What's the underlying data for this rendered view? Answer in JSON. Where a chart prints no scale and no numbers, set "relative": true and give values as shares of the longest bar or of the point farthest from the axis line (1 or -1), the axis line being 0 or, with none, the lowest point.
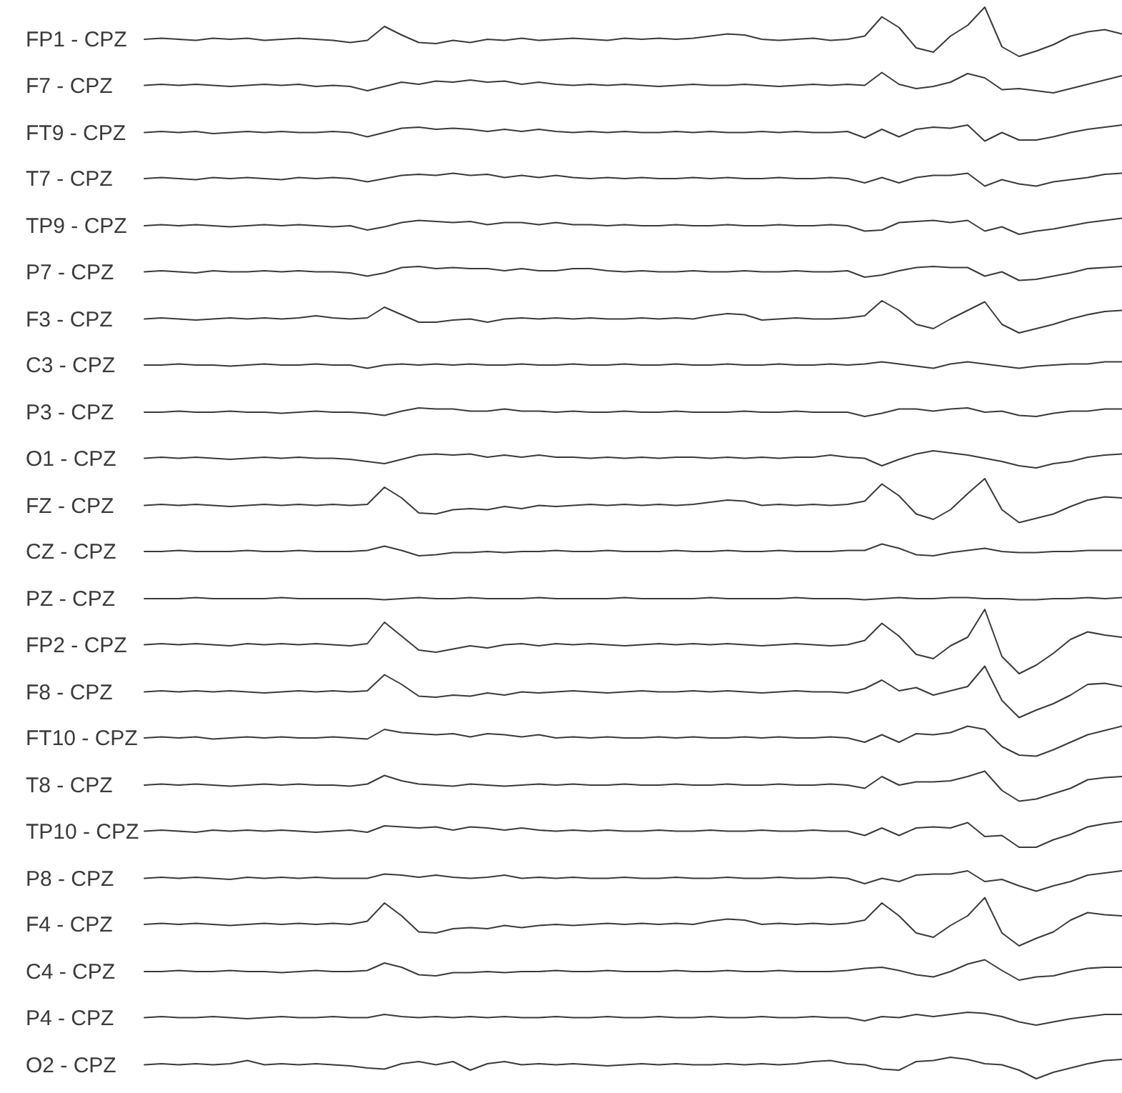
{
  "chart_data": {
    "type": "line",
    "relative": true,
    "tick_labels": false,
    "categories": [
      null,
      null,
      null,
      null,
      null,
      null,
      null,
      null,
      null,
      null,
      null,
      null,
      null,
      null,
      null,
      null,
      null,
      null,
      null,
      null,
      null,
      null,
      null,
      null,
      null,
      null,
      null,
      null,
      null,
      null,
      null,
      null,
      null,
      null,
      null,
      null,
      null,
      null,
      null,
      null,
      null,
      null,
      null,
      null,
      null,
      null,
      null,
      null,
      null,
      null,
      null,
      null,
      null,
      null,
      null,
      null,
      null,
      null
    ],
    "series": [
      {
        "name": "FP1 - CPZ",
        "color": "#3a3a3a",
        "values": [
          0.97,
          0.971,
          0.97,
          0.969,
          0.971,
          0.97,
          0.971,
          0.969,
          0.97,
          0.971,
          0.97,
          0.969,
          0.967,
          0.969,
          0.982,
          0.974,
          0.967,
          0.966,
          0.969,
          0.967,
          0.97,
          0.969,
          0.971,
          0.969,
          0.97,
          0.971,
          0.97,
          0.969,
          0.971,
          0.97,
          0.971,
          0.97,
          0.971,
          0.973,
          0.975,
          0.974,
          0.97,
          0.969,
          0.97,
          0.971,
          0.969,
          0.97,
          0.973,
          0.991,
          0.981,
          0.962,
          0.958,
          0.973,
          0.983,
          1.0,
          0.963,
          0.954,
          0.959,
          0.965,
          0.973,
          0.977,
          0.979,
          0.975
        ]
      },
      {
        "name": "F7 - CPZ",
        "color": "#3a3a3a",
        "values": [
          0.927,
          0.928,
          0.927,
          0.928,
          0.927,
          0.926,
          0.927,
          0.928,
          0.927,
          0.928,
          0.926,
          0.927,
          0.926,
          0.922,
          0.926,
          0.93,
          0.928,
          0.931,
          0.93,
          0.932,
          0.93,
          0.931,
          0.928,
          0.93,
          0.928,
          0.927,
          0.928,
          0.927,
          0.928,
          0.927,
          0.926,
          0.927,
          0.928,
          0.927,
          0.927,
          0.928,
          0.927,
          0.926,
          0.927,
          0.928,
          0.927,
          0.928,
          0.927,
          0.939,
          0.928,
          0.924,
          0.926,
          0.93,
          0.938,
          0.934,
          0.923,
          0.924,
          0.922,
          0.92,
          0.924,
          0.928,
          0.932,
          0.936
        ]
      },
      {
        "name": "FT9 - CPZ",
        "color": "#3a3a3a",
        "values": [
          0.883,
          0.884,
          0.883,
          0.884,
          0.882,
          0.883,
          0.884,
          0.883,
          0.884,
          0.883,
          0.883,
          0.884,
          0.883,
          0.879,
          0.883,
          0.887,
          0.888,
          0.886,
          0.887,
          0.886,
          0.884,
          0.886,
          0.884,
          0.886,
          0.884,
          0.883,
          0.884,
          0.883,
          0.884,
          0.883,
          0.883,
          0.884,
          0.883,
          0.884,
          0.883,
          0.883,
          0.884,
          0.883,
          0.884,
          0.883,
          0.883,
          0.884,
          0.878,
          0.886,
          0.879,
          0.886,
          0.888,
          0.887,
          0.89,
          0.875,
          0.883,
          0.876,
          0.876,
          0.879,
          0.883,
          0.886,
          0.888,
          0.89
        ]
      },
      {
        "name": "T7 - CPZ",
        "color": "#3a3a3a",
        "values": [
          0.84,
          0.841,
          0.84,
          0.839,
          0.841,
          0.84,
          0.841,
          0.84,
          0.839,
          0.841,
          0.84,
          0.841,
          0.84,
          0.837,
          0.84,
          0.843,
          0.844,
          0.843,
          0.845,
          0.843,
          0.844,
          0.841,
          0.843,
          0.841,
          0.843,
          0.841,
          0.84,
          0.841,
          0.84,
          0.841,
          0.84,
          0.84,
          0.841,
          0.84,
          0.841,
          0.84,
          0.84,
          0.841,
          0.84,
          0.84,
          0.841,
          0.84,
          0.836,
          0.841,
          0.836,
          0.841,
          0.843,
          0.843,
          0.845,
          0.833,
          0.839,
          0.835,
          0.833,
          0.837,
          0.839,
          0.841,
          0.844,
          0.845
        ]
      },
      {
        "name": "TP9 - CPZ",
        "color": "#3a3a3a",
        "values": [
          0.796,
          0.797,
          0.796,
          0.797,
          0.796,
          0.795,
          0.796,
          0.797,
          0.796,
          0.797,
          0.796,
          0.795,
          0.796,
          0.792,
          0.795,
          0.799,
          0.801,
          0.8,
          0.799,
          0.8,
          0.797,
          0.799,
          0.799,
          0.797,
          0.799,
          0.797,
          0.797,
          0.796,
          0.797,
          0.796,
          0.796,
          0.797,
          0.796,
          0.796,
          0.797,
          0.796,
          0.796,
          0.797,
          0.796,
          0.796,
          0.797,
          0.796,
          0.791,
          0.792,
          0.799,
          0.8,
          0.801,
          0.799,
          0.801,
          0.791,
          0.795,
          0.788,
          0.791,
          0.793,
          0.796,
          0.799,
          0.801,
          0.803
        ]
      },
      {
        "name": "P7 - CPZ",
        "color": "#3a3a3a",
        "values": [
          0.753,
          0.754,
          0.753,
          0.752,
          0.754,
          0.753,
          0.753,
          0.754,
          0.753,
          0.754,
          0.753,
          0.753,
          0.752,
          0.749,
          0.752,
          0.757,
          0.758,
          0.756,
          0.757,
          0.756,
          0.756,
          0.754,
          0.756,
          0.754,
          0.754,
          0.756,
          0.756,
          0.754,
          0.753,
          0.754,
          0.753,
          0.753,
          0.754,
          0.753,
          0.753,
          0.754,
          0.753,
          0.753,
          0.754,
          0.753,
          0.753,
          0.754,
          0.748,
          0.75,
          0.754,
          0.757,
          0.758,
          0.757,
          0.757,
          0.749,
          0.753,
          0.745,
          0.746,
          0.749,
          0.752,
          0.756,
          0.757,
          0.758
        ]
      },
      {
        "name": "F3 - CPZ",
        "color": "#3a3a3a",
        "values": [
          0.709,
          0.71,
          0.709,
          0.708,
          0.709,
          0.71,
          0.709,
          0.71,
          0.709,
          0.71,
          0.712,
          0.71,
          0.709,
          0.71,
          0.72,
          0.713,
          0.706,
          0.706,
          0.708,
          0.709,
          0.706,
          0.709,
          0.71,
          0.709,
          0.71,
          0.709,
          0.71,
          0.709,
          0.709,
          0.71,
          0.709,
          0.71,
          0.709,
          0.712,
          0.714,
          0.713,
          0.708,
          0.709,
          0.71,
          0.709,
          0.709,
          0.71,
          0.712,
          0.726,
          0.717,
          0.704,
          0.7,
          0.709,
          0.717,
          0.725,
          0.704,
          0.696,
          0.7,
          0.704,
          0.709,
          0.713,
          0.716,
          0.717
        ]
      },
      {
        "name": "C3 - CPZ",
        "color": "#3a3a3a",
        "values": [
          0.666,
          0.666,
          0.667,
          0.666,
          0.666,
          0.665,
          0.666,
          0.667,
          0.666,
          0.666,
          0.667,
          0.666,
          0.666,
          0.663,
          0.666,
          0.667,
          0.666,
          0.667,
          0.666,
          0.667,
          0.666,
          0.666,
          0.667,
          0.666,
          0.666,
          0.667,
          0.666,
          0.666,
          0.667,
          0.666,
          0.666,
          0.667,
          0.666,
          0.666,
          0.667,
          0.666,
          0.666,
          0.667,
          0.666,
          0.666,
          0.667,
          0.666,
          0.667,
          0.669,
          0.667,
          0.665,
          0.663,
          0.667,
          0.669,
          0.667,
          0.665,
          0.663,
          0.665,
          0.666,
          0.667,
          0.667,
          0.669,
          0.669
        ]
      },
      {
        "name": "P3 - CPZ",
        "color": "#3a3a3a",
        "values": [
          0.622,
          0.622,
          0.623,
          0.622,
          0.622,
          0.623,
          0.622,
          0.622,
          0.621,
          0.622,
          0.623,
          0.622,
          0.622,
          0.621,
          0.619,
          0.623,
          0.626,
          0.625,
          0.625,
          0.623,
          0.623,
          0.625,
          0.623,
          0.623,
          0.622,
          0.623,
          0.622,
          0.622,
          0.623,
          0.622,
          0.622,
          0.623,
          0.622,
          0.622,
          0.622,
          0.623,
          0.622,
          0.622,
          0.623,
          0.622,
          0.622,
          0.622,
          0.618,
          0.621,
          0.625,
          0.625,
          0.623,
          0.625,
          0.626,
          0.622,
          0.623,
          0.619,
          0.618,
          0.621,
          0.623,
          0.623,
          0.625,
          0.625
        ]
      },
      {
        "name": "O1 - CPZ",
        "color": "#3a3a3a",
        "values": [
          0.579,
          0.58,
          0.579,
          0.58,
          0.579,
          0.578,
          0.579,
          0.58,
          0.579,
          0.58,
          0.579,
          0.579,
          0.578,
          0.576,
          0.574,
          0.578,
          0.582,
          0.583,
          0.582,
          0.583,
          0.58,
          0.582,
          0.58,
          0.582,
          0.58,
          0.58,
          0.579,
          0.58,
          0.579,
          0.58,
          0.579,
          0.58,
          0.58,
          0.579,
          0.58,
          0.579,
          0.58,
          0.579,
          0.58,
          0.58,
          0.582,
          0.58,
          0.579,
          0.572,
          0.578,
          0.583,
          0.586,
          0.584,
          0.582,
          0.579,
          0.576,
          0.572,
          0.57,
          0.574,
          0.576,
          0.58,
          0.582,
          0.583
        ]
      },
      {
        "name": "FZ - CPZ",
        "color": "#3a3a3a",
        "values": [
          0.535,
          0.536,
          0.535,
          0.536,
          0.535,
          0.534,
          0.535,
          0.536,
          0.535,
          0.536,
          0.535,
          0.536,
          0.535,
          0.536,
          0.552,
          0.542,
          0.528,
          0.527,
          0.531,
          0.532,
          0.531,
          0.534,
          0.532,
          0.535,
          0.534,
          0.535,
          0.536,
          0.535,
          0.536,
          0.535,
          0.536,
          0.535,
          0.536,
          0.538,
          0.54,
          0.539,
          0.535,
          0.536,
          0.535,
          0.536,
          0.535,
          0.536,
          0.539,
          0.555,
          0.544,
          0.527,
          0.522,
          0.531,
          0.546,
          0.56,
          0.531,
          0.519,
          0.523,
          0.527,
          0.534,
          0.54,
          0.543,
          0.542
        ]
      },
      {
        "name": "CZ - CPZ",
        "color": "#3a3a3a",
        "values": [
          0.492,
          0.492,
          0.493,
          0.492,
          0.492,
          0.492,
          0.493,
          0.492,
          0.492,
          0.493,
          0.492,
          0.492,
          0.492,
          0.493,
          0.497,
          0.493,
          0.488,
          0.489,
          0.491,
          0.491,
          0.492,
          0.491,
          0.492,
          0.492,
          0.493,
          0.492,
          0.492,
          0.493,
          0.492,
          0.492,
          0.492,
          0.493,
          0.492,
          0.492,
          0.493,
          0.492,
          0.492,
          0.493,
          0.492,
          0.492,
          0.492,
          0.493,
          0.493,
          0.499,
          0.495,
          0.489,
          0.488,
          0.491,
          0.493,
          0.495,
          0.492,
          0.491,
          0.491,
          0.492,
          0.492,
          0.493,
          0.493,
          0.493
        ]
      },
      {
        "name": "PZ - CPZ",
        "color": "#3a3a3a",
        "values": [
          0.448,
          0.448,
          0.448,
          0.449,
          0.448,
          0.448,
          0.448,
          0.448,
          0.449,
          0.448,
          0.448,
          0.448,
          0.448,
          0.448,
          0.447,
          0.448,
          0.449,
          0.448,
          0.448,
          0.449,
          0.448,
          0.448,
          0.448,
          0.449,
          0.448,
          0.448,
          0.448,
          0.448,
          0.449,
          0.448,
          0.448,
          0.448,
          0.448,
          0.449,
          0.448,
          0.448,
          0.448,
          0.448,
          0.449,
          0.448,
          0.448,
          0.448,
          0.447,
          0.448,
          0.449,
          0.448,
          0.448,
          0.449,
          0.449,
          0.448,
          0.448,
          0.447,
          0.447,
          0.448,
          0.448,
          0.449,
          0.448,
          0.449
        ]
      },
      {
        "name": "FP2 - CPZ",
        "color": "#3a3a3a",
        "values": [
          0.405,
          0.406,
          0.405,
          0.406,
          0.405,
          0.404,
          0.406,
          0.405,
          0.406,
          0.405,
          0.406,
          0.405,
          0.404,
          0.406,
          0.426,
          0.413,
          0.4,
          0.398,
          0.401,
          0.404,
          0.402,
          0.405,
          0.406,
          0.404,
          0.406,
          0.405,
          0.406,
          0.405,
          0.404,
          0.405,
          0.406,
          0.405,
          0.406,
          0.405,
          0.406,
          0.405,
          0.404,
          0.405,
          0.406,
          0.405,
          0.404,
          0.405,
          0.409,
          0.425,
          0.413,
          0.396,
          0.392,
          0.404,
          0.412,
          0.438,
          0.394,
          0.378,
          0.386,
          0.397,
          0.41,
          0.417,
          0.414,
          0.412
        ]
      },
      {
        "name": "F8 - CPZ",
        "color": "#3a3a3a",
        "values": [
          0.361,
          0.362,
          0.361,
          0.362,
          0.361,
          0.362,
          0.361,
          0.36,
          0.361,
          0.362,
          0.361,
          0.362,
          0.361,
          0.362,
          0.377,
          0.368,
          0.357,
          0.356,
          0.358,
          0.357,
          0.36,
          0.358,
          0.361,
          0.36,
          0.361,
          0.362,
          0.361,
          0.36,
          0.361,
          0.362,
          0.361,
          0.361,
          0.362,
          0.361,
          0.362,
          0.361,
          0.36,
          0.361,
          0.362,
          0.361,
          0.361,
          0.36,
          0.364,
          0.372,
          0.362,
          0.365,
          0.358,
          0.362,
          0.366,
          0.385,
          0.353,
          0.337,
          0.344,
          0.35,
          0.358,
          0.368,
          0.369,
          0.366
        ]
      },
      {
        "name": "FT10 - CPZ",
        "color": "#3a3a3a",
        "values": [
          0.318,
          0.319,
          0.318,
          0.319,
          0.317,
          0.318,
          0.319,
          0.318,
          0.319,
          0.318,
          0.318,
          0.319,
          0.318,
          0.317,
          0.326,
          0.323,
          0.322,
          0.321,
          0.322,
          0.319,
          0.322,
          0.321,
          0.319,
          0.321,
          0.318,
          0.319,
          0.318,
          0.319,
          0.318,
          0.318,
          0.319,
          0.318,
          0.319,
          0.318,
          0.318,
          0.319,
          0.318,
          0.319,
          0.318,
          0.318,
          0.319,
          0.318,
          0.314,
          0.321,
          0.314,
          0.322,
          0.321,
          0.323,
          0.329,
          0.326,
          0.31,
          0.302,
          0.301,
          0.307,
          0.314,
          0.321,
          0.325,
          0.329
        ]
      },
      {
        "name": "T8 - CPZ",
        "color": "#3a3a3a",
        "values": [
          0.274,
          0.275,
          0.274,
          0.275,
          0.274,
          0.273,
          0.274,
          0.275,
          0.274,
          0.275,
          0.274,
          0.274,
          0.273,
          0.275,
          0.283,
          0.278,
          0.275,
          0.274,
          0.273,
          0.275,
          0.274,
          0.273,
          0.274,
          0.275,
          0.274,
          0.275,
          0.274,
          0.274,
          0.275,
          0.274,
          0.274,
          0.275,
          0.274,
          0.274,
          0.275,
          0.274,
          0.274,
          0.275,
          0.274,
          0.274,
          0.275,
          0.274,
          0.271,
          0.282,
          0.274,
          0.277,
          0.277,
          0.278,
          0.282,
          0.287,
          0.269,
          0.259,
          0.261,
          0.266,
          0.271,
          0.279,
          0.281,
          0.282
        ]
      },
      {
        "name": "TP10 - CPZ",
        "color": "#3a3a3a",
        "values": [
          0.231,
          0.232,
          0.231,
          0.23,
          0.232,
          0.231,
          0.232,
          0.231,
          0.232,
          0.231,
          0.23,
          0.231,
          0.232,
          0.23,
          0.236,
          0.235,
          0.234,
          0.235,
          0.232,
          0.235,
          0.234,
          0.232,
          0.234,
          0.232,
          0.231,
          0.232,
          0.231,
          0.232,
          0.231,
          0.231,
          0.232,
          0.231,
          0.231,
          0.232,
          0.231,
          0.231,
          0.232,
          0.231,
          0.231,
          0.232,
          0.231,
          0.231,
          0.227,
          0.234,
          0.227,
          0.234,
          0.235,
          0.234,
          0.239,
          0.226,
          0.227,
          0.216,
          0.216,
          0.223,
          0.228,
          0.235,
          0.238,
          0.24
        ]
      },
      {
        "name": "P8 - CPZ",
        "color": "#3a3a3a",
        "values": [
          0.187,
          0.188,
          0.187,
          0.188,
          0.187,
          0.186,
          0.188,
          0.187,
          0.188,
          0.187,
          0.188,
          0.187,
          0.187,
          0.187,
          0.191,
          0.19,
          0.188,
          0.19,
          0.188,
          0.187,
          0.188,
          0.19,
          0.187,
          0.188,
          0.187,
          0.188,
          0.187,
          0.187,
          0.188,
          0.187,
          0.187,
          0.188,
          0.187,
          0.187,
          0.188,
          0.187,
          0.187,
          0.188,
          0.187,
          0.187,
          0.188,
          0.187,
          0.182,
          0.187,
          0.184,
          0.19,
          0.191,
          0.191,
          0.194,
          0.184,
          0.186,
          0.18,
          0.175,
          0.18,
          0.184,
          0.19,
          0.192,
          0.194
        ]
      },
      {
        "name": "F4 - CPZ",
        "color": "#3a3a3a",
        "values": [
          0.144,
          0.145,
          0.144,
          0.145,
          0.144,
          0.143,
          0.144,
          0.145,
          0.144,
          0.145,
          0.144,
          0.145,
          0.144,
          0.147,
          0.164,
          0.152,
          0.137,
          0.136,
          0.14,
          0.141,
          0.14,
          0.143,
          0.141,
          0.143,
          0.144,
          0.143,
          0.144,
          0.145,
          0.144,
          0.145,
          0.144,
          0.145,
          0.144,
          0.147,
          0.149,
          0.148,
          0.144,
          0.145,
          0.144,
          0.145,
          0.144,
          0.145,
          0.148,
          0.164,
          0.152,
          0.136,
          0.132,
          0.143,
          0.152,
          0.169,
          0.136,
          0.124,
          0.131,
          0.137,
          0.148,
          0.155,
          0.153,
          0.152
        ]
      },
      {
        "name": "C4 - CPZ",
        "color": "#3a3a3a",
        "values": [
          0.1,
          0.1,
          0.101,
          0.1,
          0.1,
          0.101,
          0.1,
          0.1,
          0.099,
          0.1,
          0.101,
          0.1,
          0.1,
          0.101,
          0.108,
          0.104,
          0.097,
          0.096,
          0.099,
          0.099,
          0.1,
          0.099,
          0.1,
          0.1,
          0.101,
          0.1,
          0.1,
          0.101,
          0.1,
          0.1,
          0.1,
          0.101,
          0.1,
          0.1,
          0.101,
          0.1,
          0.1,
          0.101,
          0.1,
          0.1,
          0.1,
          0.101,
          0.103,
          0.104,
          0.101,
          0.097,
          0.095,
          0.1,
          0.107,
          0.111,
          0.101,
          0.092,
          0.095,
          0.096,
          0.1,
          0.103,
          0.104,
          0.104
        ]
      },
      {
        "name": "P4 - CPZ",
        "color": "#3a3a3a",
        "values": [
          0.057,
          0.058,
          0.057,
          0.057,
          0.058,
          0.057,
          0.056,
          0.057,
          0.058,
          0.057,
          0.057,
          0.058,
          0.057,
          0.057,
          0.06,
          0.058,
          0.057,
          0.058,
          0.057,
          0.058,
          0.057,
          0.058,
          0.057,
          0.057,
          0.058,
          0.057,
          0.057,
          0.058,
          0.057,
          0.057,
          0.058,
          0.057,
          0.057,
          0.058,
          0.057,
          0.057,
          0.058,
          0.057,
          0.057,
          0.058,
          0.057,
          0.057,
          0.054,
          0.058,
          0.057,
          0.06,
          0.058,
          0.06,
          0.062,
          0.061,
          0.058,
          0.053,
          0.05,
          0.053,
          0.056,
          0.058,
          0.06,
          0.06
        ]
      },
      {
        "name": "O2 - CPZ",
        "color": "#3a3a3a",
        "values": [
          0.013,
          0.014,
          0.013,
          0.014,
          0.013,
          0.014,
          0.017,
          0.013,
          0.014,
          0.013,
          0.014,
          0.013,
          0.012,
          0.01,
          0.009,
          0.014,
          0.016,
          0.013,
          0.016,
          0.008,
          0.014,
          0.016,
          0.013,
          0.014,
          0.013,
          0.014,
          0.013,
          0.012,
          0.013,
          0.014,
          0.013,
          0.014,
          0.013,
          0.013,
          0.014,
          0.013,
          0.014,
          0.013,
          0.014,
          0.016,
          0.017,
          0.014,
          0.013,
          0.009,
          0.008,
          0.016,
          0.017,
          0.02,
          0.018,
          0.014,
          0.013,
          0.008,
          0.0,
          0.006,
          0.01,
          0.014,
          0.017,
          0.018
        ]
      }
    ]
  }
}
